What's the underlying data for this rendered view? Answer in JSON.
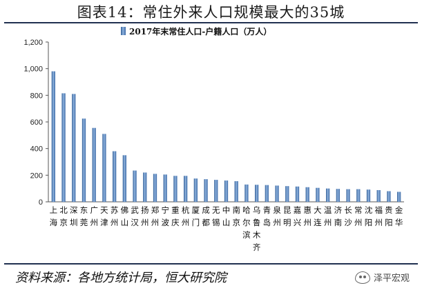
{
  "title": "图表14：常住外来人口规模最大的35城",
  "source": "资料来源：各地方统计局，恒大研究院",
  "watermark": "泽平宏观",
  "chart_data": {
    "type": "bar",
    "title": "",
    "legend": [
      "2017年末常住人口-户籍人口（万人）"
    ],
    "legend_position": "top",
    "xlabel": "",
    "ylabel": "",
    "ylim": [
      0,
      1200
    ],
    "yticks": [
      0,
      200,
      400,
      600,
      800,
      1000,
      1200
    ],
    "ytick_labels": [
      "0",
      "200",
      "400",
      "600",
      "800",
      "1,000",
      "1,200"
    ],
    "grid": false,
    "categories": [
      "上海",
      "北京",
      "深圳",
      "东莞",
      "广州",
      "天津",
      "苏州",
      "佛山",
      "武汉",
      "扬州",
      "郑州",
      "宁波",
      "重庆",
      "杭州",
      "厦门",
      "成都",
      "无锡",
      "中山",
      "南京",
      "哈尔滨",
      "乌鲁木齐",
      "青岛",
      "泉州",
      "昆明",
      "嘉兴",
      "惠州",
      "大连",
      "温州",
      "济南",
      "长沙",
      "常州",
      "沈阳",
      "福州",
      "贵阳",
      "金华"
    ],
    "series": [
      {
        "name": "2017年末常住人口-户籍人口（万人）",
        "color": "#4a7ab5",
        "values": [
          980,
          815,
          810,
          625,
          555,
          510,
          380,
          350,
          235,
          220,
          210,
          205,
          195,
          195,
          175,
          170,
          165,
          160,
          155,
          130,
          128,
          126,
          122,
          118,
          115,
          110,
          105,
          100,
          97,
          95,
          95,
          92,
          88,
          80,
          75
        ]
      }
    ]
  }
}
